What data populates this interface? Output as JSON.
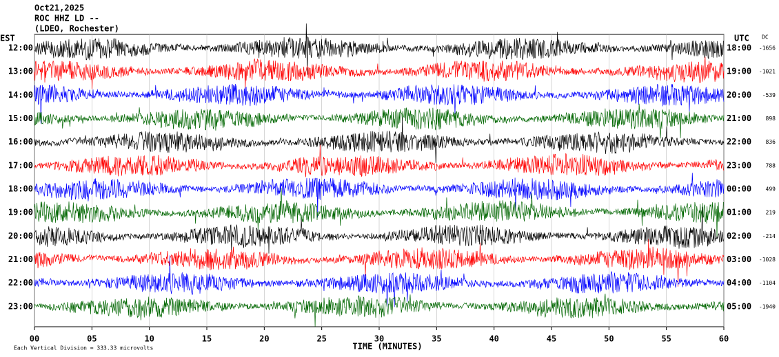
{
  "chart_data": {
    "type": "helicorder",
    "date": "Oct21,2025",
    "station": "ROC HHZ LD --",
    "network": "(LDEO, Rochester)",
    "left_axis_title": "EST",
    "right_axis_title": "UTC",
    "dc_title": "DC",
    "x_label": "TIME (MINUTES)",
    "footer": "Each Vertical Division = 333.33 microvolts",
    "xlim": [
      0,
      60
    ],
    "xticks": [
      {
        "value": 0,
        "label": "00"
      },
      {
        "value": 5,
        "label": "05"
      },
      10,
      15,
      20,
      25,
      30,
      35,
      40,
      45,
      50,
      55,
      60
    ],
    "grid": true,
    "rows": [
      {
        "est": "12:00",
        "utc": "18:00",
        "dc": -1656,
        "color": "#000000"
      },
      {
        "est": "13:00",
        "utc": "19:00",
        "dc": -1021,
        "color": "#ff0000"
      },
      {
        "est": "14:00",
        "utc": "20:00",
        "dc": -539,
        "color": "#0000ff"
      },
      {
        "est": "15:00",
        "utc": "21:00",
        "dc": 898,
        "color": "#006600"
      },
      {
        "est": "16:00",
        "utc": "22:00",
        "dc": 836,
        "color": "#000000"
      },
      {
        "est": "17:00",
        "utc": "23:00",
        "dc": 788,
        "color": "#ff0000"
      },
      {
        "est": "18:00",
        "utc": "00:00",
        "dc": 499,
        "color": "#0000ff"
      },
      {
        "est": "19:00",
        "utc": "01:00",
        "dc": 219,
        "color": "#006600"
      },
      {
        "est": "20:00",
        "utc": "02:00",
        "dc": -214,
        "color": "#000000"
      },
      {
        "est": "21:00",
        "utc": "03:00",
        "dc": -1028,
        "color": "#ff0000"
      },
      {
        "est": "22:00",
        "utc": "04:00",
        "dc": -1104,
        "color": "#0000ff"
      },
      {
        "est": "23:00",
        "utc": "05:00",
        "dc": -1940,
        "color": "#006600"
      }
    ]
  }
}
